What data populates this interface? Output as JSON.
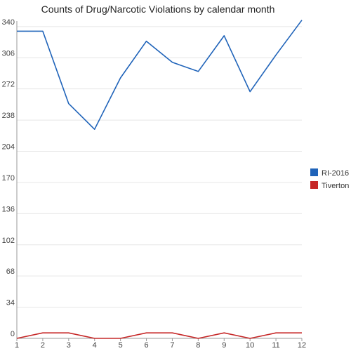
{
  "chart_data": {
    "type": "line",
    "title": "Counts of Drug/Narcotic Violations by calendar month",
    "xlabel": "",
    "ylabel": "",
    "x": [
      1,
      2,
      3,
      4,
      5,
      6,
      7,
      8,
      9,
      10,
      11,
      12
    ],
    "x_tick_labels": [
      "1",
      "2",
      "3",
      "4",
      "5",
      "6",
      "7",
      "8",
      "9",
      "10",
      "11",
      "12"
    ],
    "y_ticks": [
      0,
      34,
      68,
      102,
      136,
      170,
      204,
      238,
      272,
      306,
      340
    ],
    "y_tick_labels": [
      "0",
      "34",
      "68",
      "102",
      "136",
      "170",
      "204",
      "238",
      "272",
      "306",
      "340"
    ],
    "xlim": [
      1,
      12
    ],
    "ylim": [
      0,
      346
    ],
    "grid": true,
    "legend_position": "right",
    "series": [
      {
        "name": "RI-2016",
        "color": "#1f63b9",
        "values": [
          335,
          335,
          256,
          228,
          284,
          324,
          301,
          291,
          330,
          269,
          309,
          347
        ]
      },
      {
        "name": "Tiverton",
        "color": "#c62828",
        "values": [
          0,
          6,
          6,
          0,
          0,
          6,
          6,
          0,
          6,
          0,
          6,
          6
        ]
      }
    ]
  }
}
